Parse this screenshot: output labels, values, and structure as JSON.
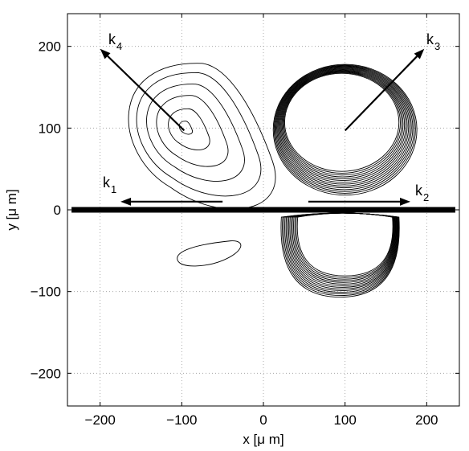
{
  "chart_data": {
    "type": "contour",
    "xlabel": "x [μ m]",
    "ylabel": "y [μ m]",
    "xlim": [
      -240,
      240
    ],
    "ylim": [
      -240,
      240
    ],
    "xticks": [
      -200,
      -100,
      0,
      100,
      200
    ],
    "yticks": [
      -200,
      -100,
      0,
      100,
      200
    ],
    "xtick_labels": [
      "−200",
      "−100",
      "0",
      "100",
      "200"
    ],
    "ytick_labels": [
      "−200",
      "−100",
      "0",
      "100",
      "200"
    ],
    "grid": true,
    "interface_line": {
      "y": 0,
      "x_range": [
        -235,
        235
      ]
    },
    "arrows": [
      {
        "name": "k1",
        "label": "k",
        "subscript": "1",
        "from": [
          -50,
          10
        ],
        "to": [
          -175,
          10
        ]
      },
      {
        "name": "k2",
        "label": "k",
        "subscript": "2",
        "from": [
          55,
          10
        ],
        "to": [
          180,
          10
        ]
      },
      {
        "name": "k3",
        "label": "k",
        "subscript": "3",
        "from": [
          100,
          97
        ],
        "to": [
          197,
          197
        ]
      },
      {
        "name": "k4",
        "label": "k",
        "subscript": "4",
        "from": [
          -97,
          97
        ],
        "to": [
          -200,
          197
        ]
      }
    ],
    "contour_groups": [
      {
        "name": "upper-right-beam",
        "center": [
          100,
          98
        ],
        "rx": [
          88,
          70
        ],
        "ry": [
          80,
          60
        ],
        "levels": 14
      },
      {
        "name": "lower-right-beam",
        "center": [
          100,
          -45
        ],
        "rx": [
          72,
          58
        ],
        "ry": [
          35,
          20
        ],
        "levels": 14
      },
      {
        "name": "upper-left-beam",
        "center": [
          -95,
          100
        ],
        "levels": 6,
        "radii": [
          7,
          22,
          38,
          52,
          66,
          78
        ]
      },
      {
        "name": "lower-left-blob",
        "center": [
          -70,
          -55
        ],
        "levels": 1
      }
    ]
  }
}
